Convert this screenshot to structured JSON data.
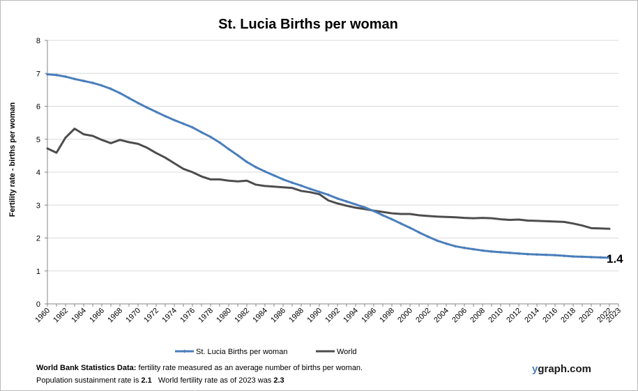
{
  "chart_data": {
    "type": "line",
    "title": "St. Lucia Births per woman",
    "ylabel": "Fertility rate  - births per woman",
    "xlabel": "",
    "ylim": [
      0,
      8
    ],
    "yticks": [
      0,
      1,
      2,
      3,
      4,
      5,
      6,
      7,
      8
    ],
    "xlim": [
      1960,
      2023
    ],
    "xticks": [
      "1960",
      "1962",
      "1964",
      "1966",
      "1968",
      "1970",
      "1972",
      "1974",
      "1976",
      "1978",
      "1980",
      "1982",
      "1984",
      "1986",
      "1988",
      "1990",
      "1992",
      "1994",
      "1996",
      "1998",
      "2000",
      "2002",
      "2004",
      "2006",
      "2008",
      "2010",
      "2012",
      "2014",
      "2016",
      "2018",
      "2020",
      "2022",
      "2023"
    ],
    "grid": "horizontal",
    "legend": "bottom",
    "end_label": "1.4",
    "series": [
      {
        "name": "St. Lucia Births per woman",
        "color": "#4a7ebb",
        "marker": "diamond",
        "x": [
          1960,
          1961,
          1962,
          1963,
          1964,
          1965,
          1966,
          1967,
          1968,
          1969,
          1970,
          1971,
          1972,
          1973,
          1974,
          1975,
          1976,
          1977,
          1978,
          1979,
          1980,
          1981,
          1982,
          1983,
          1984,
          1985,
          1986,
          1987,
          1988,
          1989,
          1990,
          1991,
          1992,
          1993,
          1994,
          1995,
          1996,
          1997,
          1998,
          1999,
          2000,
          2001,
          2002,
          2003,
          2004,
          2005,
          2006,
          2007,
          2008,
          2009,
          2010,
          2011,
          2012,
          2013,
          2014,
          2015,
          2016,
          2017,
          2018,
          2019,
          2020,
          2021,
          2022
        ],
        "values": [
          6.97,
          6.95,
          6.9,
          6.83,
          6.77,
          6.71,
          6.63,
          6.53,
          6.4,
          6.25,
          6.1,
          5.96,
          5.83,
          5.7,
          5.58,
          5.47,
          5.36,
          5.21,
          5.07,
          4.9,
          4.7,
          4.51,
          4.31,
          4.15,
          4.02,
          3.9,
          3.78,
          3.68,
          3.59,
          3.49,
          3.4,
          3.31,
          3.2,
          3.11,
          3.02,
          2.93,
          2.82,
          2.69,
          2.57,
          2.44,
          2.31,
          2.17,
          2.04,
          1.92,
          1.83,
          1.75,
          1.7,
          1.66,
          1.62,
          1.59,
          1.57,
          1.55,
          1.53,
          1.51,
          1.5,
          1.49,
          1.48,
          1.46,
          1.44,
          1.43,
          1.42,
          1.41,
          1.4
        ]
      },
      {
        "name": "World",
        "color": "#4d4d4d",
        "marker": "none",
        "x": [
          1960,
          1961,
          1962,
          1963,
          1964,
          1965,
          1966,
          1967,
          1968,
          1969,
          1970,
          1971,
          1972,
          1973,
          1974,
          1975,
          1976,
          1977,
          1978,
          1979,
          1980,
          1981,
          1982,
          1983,
          1984,
          1985,
          1986,
          1987,
          1988,
          1989,
          1990,
          1991,
          1992,
          1993,
          1994,
          1995,
          1996,
          1997,
          1998,
          1999,
          2000,
          2001,
          2002,
          2003,
          2004,
          2005,
          2006,
          2007,
          2008,
          2009,
          2010,
          2011,
          2012,
          2013,
          2014,
          2015,
          2016,
          2017,
          2018,
          2019,
          2020,
          2021,
          2022
        ],
        "values": [
          4.72,
          4.59,
          5.05,
          5.32,
          5.15,
          5.1,
          4.98,
          4.88,
          4.98,
          4.91,
          4.86,
          4.74,
          4.58,
          4.44,
          4.27,
          4.1,
          4.0,
          3.87,
          3.78,
          3.78,
          3.74,
          3.72,
          3.74,
          3.62,
          3.58,
          3.56,
          3.54,
          3.52,
          3.43,
          3.39,
          3.33,
          3.14,
          3.05,
          2.98,
          2.92,
          2.88,
          2.83,
          2.79,
          2.75,
          2.73,
          2.73,
          2.69,
          2.67,
          2.65,
          2.64,
          2.63,
          2.61,
          2.6,
          2.61,
          2.6,
          2.57,
          2.55,
          2.56,
          2.53,
          2.52,
          2.51,
          2.5,
          2.49,
          2.44,
          2.38,
          2.3,
          2.29,
          2.28
        ]
      }
    ]
  },
  "footer": {
    "source_label": "World Bank Statistics Data:",
    "source_text": " fertility rate measured as an average number  of births per woman.",
    "sustain_label": "Population sustainment rate is ",
    "sustain_value": "2.1",
    "world_label": "   World fertility rate as of 2023 was ",
    "world_value": "2.3"
  },
  "brand": {
    "prefix": "y",
    "rest": "graph.com"
  }
}
